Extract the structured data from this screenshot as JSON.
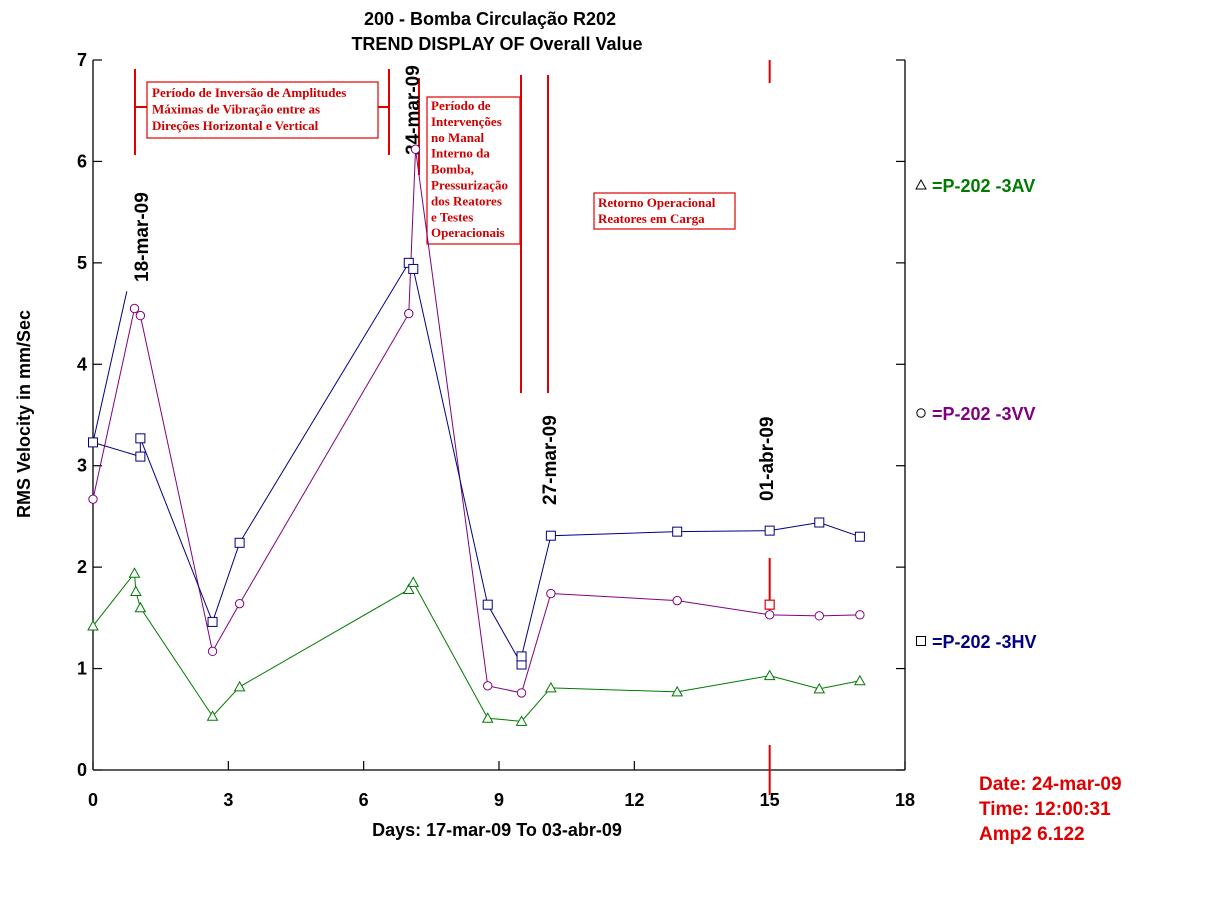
{
  "chart_data": {
    "type": "line",
    "title": "200  - Bomba Circulação R202",
    "subtitle": "TREND DISPLAY OF Overall Value",
    "xlabel": "Days:  17-mar-09  To  03-abr-09",
    "ylabel": "RMS Velocity in mm/Sec",
    "xlim": [
      0,
      18
    ],
    "ylim": [
      0,
      7
    ],
    "xticks": [
      0,
      3,
      6,
      9,
      12,
      15,
      18
    ],
    "yticks": [
      0,
      1,
      2,
      3,
      4,
      5,
      6,
      7
    ],
    "grid": false,
    "legend_position": "right",
    "series": [
      {
        "name": "=P-202     -3AV",
        "marker": "triangle",
        "color": "#007a00",
        "x": [
          0,
          0.92,
          0.95,
          1.05,
          2.65,
          3.25,
          7.0,
          7.1,
          8.75,
          9.5,
          10.15,
          12.95,
          15.0,
          16.1,
          17.0
        ],
        "y": [
          1.42,
          1.94,
          1.76,
          1.6,
          0.53,
          0.82,
          1.78,
          1.85,
          0.51,
          0.48,
          0.81,
          0.77,
          0.93,
          0.8,
          0.88
        ]
      },
      {
        "name": "=P-202     -3VV",
        "marker": "circle",
        "color": "#800080",
        "x": [
          0,
          0.92,
          1.05,
          2.65,
          3.25,
          7.0,
          7.15,
          8.75,
          9.5,
          10.15,
          12.95,
          15.0,
          16.1,
          17.0
        ],
        "y": [
          2.67,
          4.55,
          4.48,
          1.17,
          1.64,
          4.5,
          6.12,
          0.83,
          0.76,
          1.74,
          1.67,
          1.53,
          1.52,
          1.53
        ]
      },
      {
        "name": "=P-202     -3HV",
        "marker": "square",
        "color": "#000080",
        "x": [
          0,
          1.05,
          1.05,
          2.65,
          3.25,
          7.0,
          7.1,
          8.75,
          9.5,
          9.5,
          10.15,
          12.95,
          15.0,
          16.1,
          17.0
        ],
        "y": [
          3.23,
          3.09,
          3.27,
          1.46,
          2.24,
          5.0,
          4.94,
          1.63,
          1.04,
          1.12,
          2.31,
          2.35,
          2.36,
          2.44,
          2.3
        ]
      }
    ],
    "date_markers": [
      {
        "label": "18-mar-09",
        "x": 0.92
      },
      {
        "label": "24-mar-09",
        "x": 7.15
      },
      {
        "label": "27-mar-09",
        "x": 10.15
      },
      {
        "label": "01-abr-09",
        "x": 15.0
      }
    ],
    "annotations": [
      {
        "lines": [
          "Período de Inversão de Amplitudes",
          "Máximas de Vibração entre as",
          "Direções Horizontal e Vertical"
        ]
      },
      {
        "lines": [
          "Período de",
          "Intervenções",
          "no Manal",
          "Interno da",
          "Bomba,",
          "Pressurização",
          "dos Reatores",
          "e Testes",
          "Operacionais"
        ]
      },
      {
        "lines": [
          "Retorno Operacional",
          "Reatores em Carga"
        ]
      }
    ],
    "cursor": {
      "x": 15.0,
      "y": 1.63,
      "color": "#e00000"
    }
  },
  "info": {
    "date": "Date:  24-mar-09",
    "time": "Time:  12:00:31",
    "amp": "Amp2   6.122"
  }
}
